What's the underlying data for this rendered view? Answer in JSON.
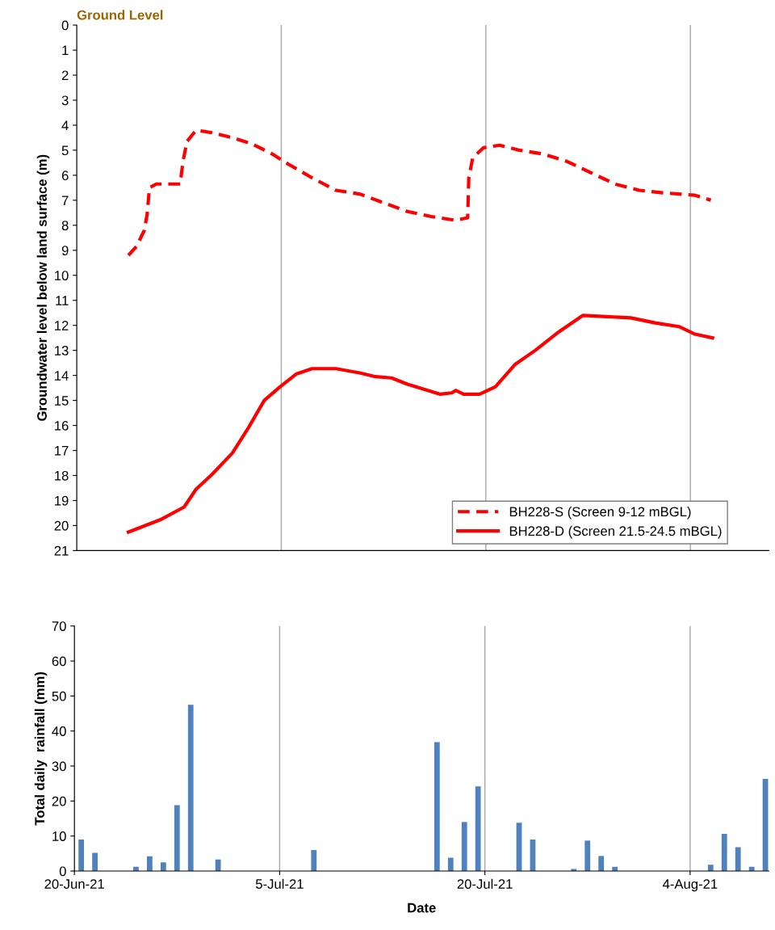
{
  "chart_data": [
    {
      "type": "line",
      "ylabel": "Groundwater level below land surface (m)",
      "annotations": [
        "Ground Level"
      ],
      "xlim": [
        "2021-06-20",
        "2021-08-09T18:00"
      ],
      "xticks": [
        {
          "value": "2021-06-20",
          "label": null
        },
        {
          "value": "2021-07-05",
          "label": null
        },
        {
          "value": "2021-07-20",
          "label": null
        },
        {
          "value": "2021-08-04",
          "label": null
        }
      ],
      "ylim": [
        21,
        0
      ],
      "yticks": [
        0,
        1,
        2,
        3,
        4,
        5,
        6,
        7,
        8,
        9,
        10,
        11,
        12,
        13,
        14,
        15,
        16,
        17,
        18,
        19,
        20,
        21
      ],
      "grid": "x",
      "legend": "bottom right",
      "tick_labels": "y",
      "series": [
        {
          "name": "BH228-S (Screen 9-12 mBGL)",
          "color": "#ff0000",
          "line_style": "dashed",
          "x": [
            "2021-06-23T19:00",
            "2021-06-24T09:00",
            "2021-06-24T23:00",
            "2021-06-25T04:00",
            "2021-06-25T08:00",
            "2021-06-25T20:00",
            "2021-06-26T17:00",
            "2021-06-27T14:00",
            "2021-06-27T19:00",
            "2021-06-28T02:00",
            "2021-06-28T18:00",
            "2021-06-29T22:00",
            "2021-07-01T10:00",
            "2021-07-02T21:00",
            "2021-07-04T08:00",
            "2021-07-05T12:00",
            "2021-07-07T06:00",
            "2021-07-09T00:00",
            "2021-07-10T18:00",
            "2021-07-12T12:00",
            "2021-07-14T06:00",
            "2021-07-16T00:00",
            "2021-07-17T19:00",
            "2021-07-18T16:00",
            "2021-07-18T18:00",
            "2021-07-19T01:00",
            "2021-07-19T20:00",
            "2021-07-21T00:00",
            "2021-07-22T11:00",
            "2021-07-24T05:00",
            "2021-07-25T23:00",
            "2021-07-27T17:00",
            "2021-07-29T11:00",
            "2021-07-31T06:00",
            "2021-08-01T23:00",
            "2021-08-04T08:00",
            "2021-08-05T12:00"
          ],
          "values": [
            9.2,
            8.85,
            8.2,
            7.55,
            6.5,
            6.35,
            6.35,
            6.35,
            5.45,
            4.65,
            4.2,
            4.3,
            4.5,
            4.75,
            5.15,
            5.55,
            6.1,
            6.6,
            6.75,
            7.1,
            7.45,
            7.65,
            7.8,
            7.7,
            6.1,
            5.3,
            4.9,
            4.8,
            5.0,
            5.15,
            5.45,
            5.9,
            6.35,
            6.6,
            6.7,
            6.8,
            7.0
          ]
        },
        {
          "name": "BH228-D (Screen 21.5-24.5 mBGL)",
          "color": "#ff0000",
          "line_style": "solid",
          "x": [
            "2021-06-23T19:00",
            "2021-06-26T03:00",
            "2021-06-27T21:00",
            "2021-06-28T18:00",
            "2021-06-29T22:00",
            "2021-07-01T10:00",
            "2021-07-02T14:00",
            "2021-07-03T18:00",
            "2021-07-04T22:00",
            "2021-07-06T02:00",
            "2021-07-07T06:00",
            "2021-07-09T00:00",
            "2021-07-10T18:00",
            "2021-07-11T22:00",
            "2021-07-13T02:00",
            "2021-07-14T06:00",
            "2021-07-15T11:00",
            "2021-07-16T15:00",
            "2021-07-17T12:00",
            "2021-07-17T19:00",
            "2021-07-18T09:00",
            "2021-07-19T13:00",
            "2021-07-20T17:00",
            "2021-07-22T04:00",
            "2021-07-23T15:00",
            "2021-07-25T09:00",
            "2021-07-27T03:00",
            "2021-07-28T21:00",
            "2021-07-30T15:00",
            "2021-08-01T10:00",
            "2021-08-03T04:00",
            "2021-08-04T08:00",
            "2021-08-05T15:00"
          ],
          "values": [
            20.26,
            19.77,
            19.26,
            18.55,
            17.96,
            17.1,
            16.1,
            15.0,
            14.45,
            13.95,
            13.73,
            13.73,
            13.9,
            14.05,
            14.1,
            14.35,
            14.55,
            14.75,
            14.7,
            14.6,
            14.75,
            14.75,
            14.45,
            13.55,
            13.0,
            12.25,
            11.6,
            11.65,
            11.7,
            11.9,
            12.05,
            12.35,
            12.5
          ]
        }
      ]
    },
    {
      "type": "bar",
      "xlabel": "Date",
      "ylabel": "Total daily  rainfall (mm)",
      "xlim": [
        "2021-06-20",
        "2021-08-09T18:00"
      ],
      "xticks": [
        {
          "value": "2021-06-20",
          "label": "20-Jun-21"
        },
        {
          "value": "2021-07-05",
          "label": "5-Jul-21"
        },
        {
          "value": "2021-07-20",
          "label": "20-Jul-21"
        },
        {
          "value": "2021-08-04",
          "label": "4-Aug-21"
        }
      ],
      "ylim": [
        0,
        70
      ],
      "yticks": [
        0,
        10,
        20,
        30,
        40,
        50,
        60,
        70
      ],
      "grid": "x",
      "series": [
        {
          "color": "#4f81bd",
          "x": [
            "2021-06-20T12:00",
            "2021-06-21T12:00",
            "2021-06-24T12:00",
            "2021-06-25T12:00",
            "2021-06-26T12:00",
            "2021-06-27T12:00",
            "2021-06-28T12:00",
            "2021-06-30T12:00",
            "2021-07-07T12:00",
            "2021-07-16T12:00",
            "2021-07-17T12:00",
            "2021-07-18T12:00",
            "2021-07-19T12:00",
            "2021-07-22T12:00",
            "2021-07-23T12:00",
            "2021-07-26T12:00",
            "2021-07-27T12:00",
            "2021-07-28T12:00",
            "2021-07-29T12:00",
            "2021-08-05T12:00",
            "2021-08-06T12:00",
            "2021-08-07T12:00",
            "2021-08-08T12:00",
            "2021-08-09T12:00"
          ],
          "values": [
            9,
            5.2,
            1.2,
            4.2,
            2.5,
            18.8,
            47.5,
            3.3,
            6,
            36.8,
            3.8,
            14,
            24.2,
            13.8,
            9,
            0.6,
            8.7,
            4.3,
            1.2,
            1.8,
            10.6,
            6.8,
            1.2,
            26.3
          ]
        }
      ]
    }
  ]
}
